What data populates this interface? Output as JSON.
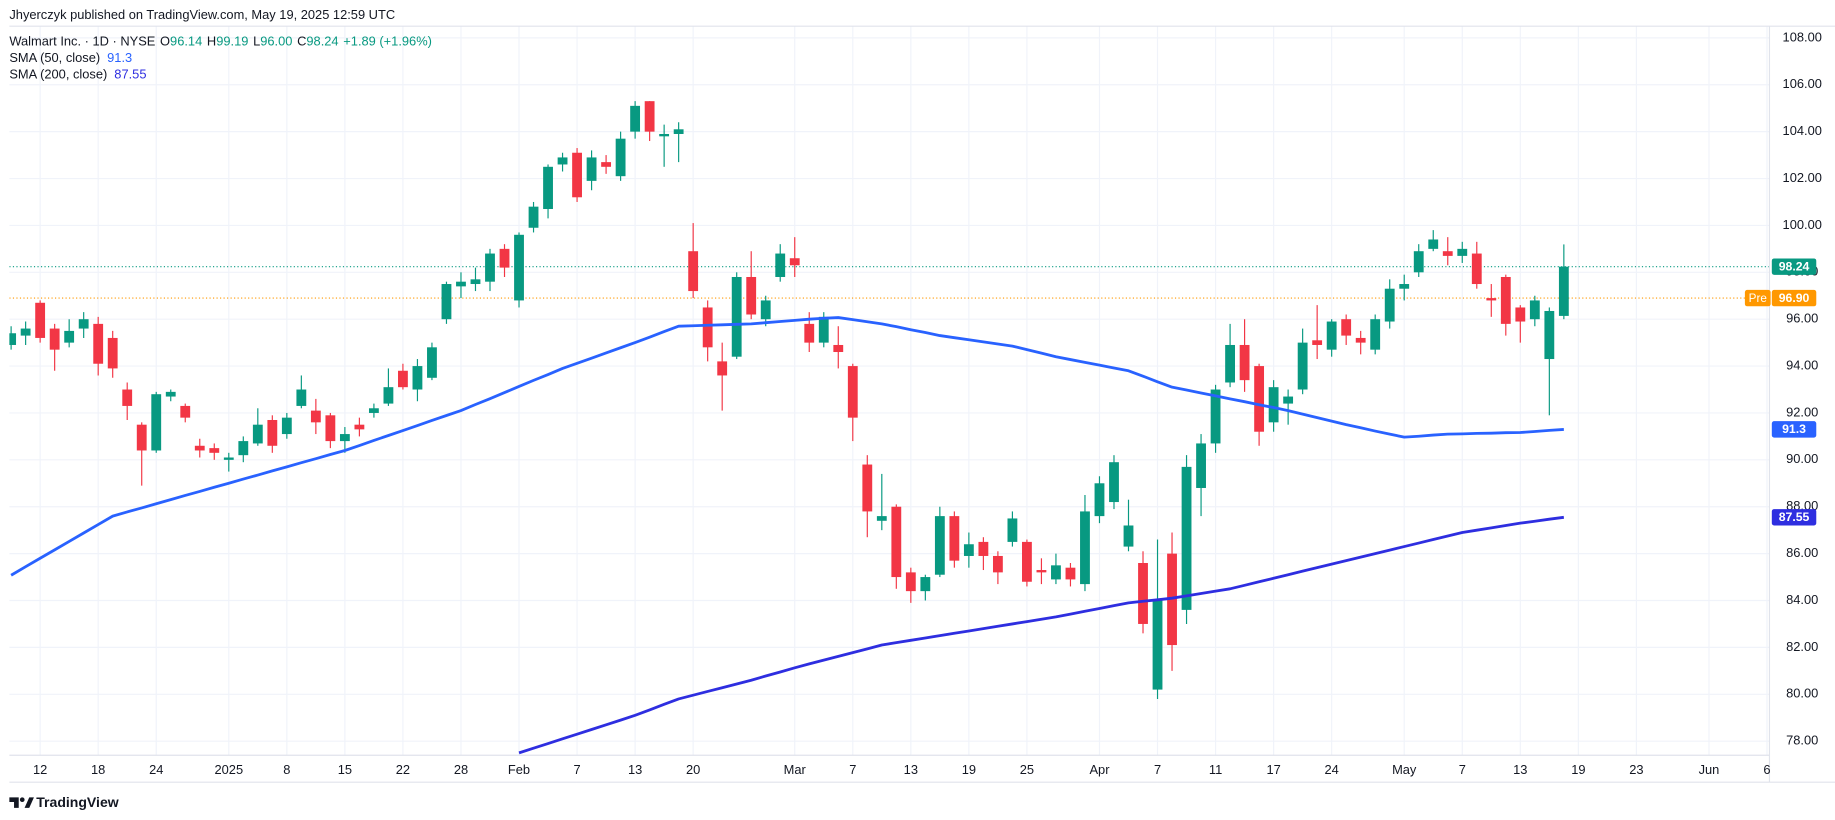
{
  "header": {
    "published": "Jhyerczyk published on TradingView.com, May 19, 2025 12:59 UTC",
    "symbol": "Walmart Inc. · 1D · NYSE",
    "ohlc": [
      {
        "key": "O",
        "text": "96.14"
      },
      {
        "key": "H",
        "text": "99.19"
      },
      {
        "key": "L",
        "text": "96.00"
      },
      {
        "key": "C",
        "text": "98.24"
      }
    ],
    "change": "+1.89 (+1.96%)"
  },
  "chart_data": {
    "type": "candlestick",
    "categories": [
      null,
      null,
      "12",
      null,
      null,
      null,
      "18",
      null,
      null,
      null,
      "24",
      null,
      null,
      null,
      null,
      "2025",
      null,
      null,
      null,
      "8",
      null,
      null,
      null,
      "15",
      null,
      null,
      null,
      "22",
      null,
      null,
      null,
      "28",
      null,
      null,
      null,
      "Feb",
      null,
      null,
      null,
      "7",
      null,
      null,
      null,
      "13",
      null,
      null,
      null,
      "20",
      null,
      null,
      null,
      null,
      null,
      null,
      "Mar",
      null,
      null,
      null,
      "7",
      null,
      null,
      null,
      "13",
      null,
      null,
      null,
      "19",
      null,
      null,
      null,
      "25",
      null,
      null,
      null,
      null,
      "Apr",
      null,
      null,
      null,
      "7",
      null,
      null,
      null,
      "11",
      null,
      null,
      null,
      "17",
      null,
      null,
      null,
      "24",
      null,
      null,
      null,
      null,
      "May",
      null,
      null,
      null,
      "7",
      null,
      null,
      null,
      "13",
      null,
      null,
      null,
      "19",
      null,
      null,
      null,
      "23",
      null,
      null,
      null,
      null,
      "Jun",
      null,
      null,
      null,
      "6"
    ],
    "open": [
      94.9,
      95.3,
      96.7,
      95.6,
      95.0,
      95.6,
      95.8,
      95.2,
      93.0,
      91.5,
      90.4,
      92.7,
      92.3,
      90.6,
      90.5,
      90.0,
      90.2,
      90.7,
      91.7,
      91.1,
      92.3,
      92.1,
      91.9,
      90.8,
      91.5,
      92.0,
      92.4,
      93.8,
      93.0,
      93.5,
      96.0,
      97.4,
      97.5,
      97.6,
      99.0,
      96.8,
      99.9,
      100.7,
      102.6,
      103.1,
      101.9,
      102.7,
      102.1,
      104.0,
      105.3,
      103.8,
      103.9,
      98.9,
      96.5,
      94.2,
      94.4,
      97.8,
      96.0,
      97.8,
      98.6,
      95.8,
      95.0,
      94.9,
      94.0,
      89.8,
      87.4,
      88.0,
      85.2,
      84.4,
      85.1,
      87.6,
      85.9,
      86.5,
      85.9,
      86.5,
      86.5,
      85.3,
      84.9,
      85.4,
      84.7,
      87.6,
      88.2,
      86.3,
      85.6,
      80.2,
      86.0,
      83.6,
      88.8,
      90.7,
      93.3,
      94.9,
      94.0,
      91.6,
      92.4,
      93.0,
      95.1,
      94.7,
      96.0,
      95.2,
      94.7,
      95.9,
      97.3,
      98.0,
      99.0,
      98.9,
      98.7,
      98.8,
      96.9,
      97.8,
      96.5,
      96.0,
      94.3,
      96.14,
      null,
      null,
      null,
      null,
      null,
      null,
      null,
      null,
      null,
      null,
      null,
      null,
      null,
      null
    ],
    "high": [
      95.7,
      95.9,
      96.8,
      95.8,
      96.0,
      96.3,
      96.1,
      95.5,
      93.3,
      91.6,
      92.9,
      93.0,
      92.4,
      90.9,
      90.7,
      90.3,
      91.0,
      92.2,
      91.9,
      92.0,
      93.6,
      92.6,
      92.0,
      91.4,
      91.8,
      92.4,
      93.9,
      94.1,
      94.3,
      95.0,
      97.6,
      98.0,
      98.2,
      99.0,
      99.2,
      99.7,
      101.0,
      102.6,
      103.1,
      103.3,
      103.2,
      103.0,
      104.0,
      105.3,
      105.3,
      104.3,
      104.4,
      100.1,
      96.8,
      95.0,
      98.0,
      98.9,
      97.0,
      99.2,
      99.5,
      96.3,
      96.3,
      95.7,
      94.1,
      90.2,
      89.4,
      88.1,
      85.4,
      85.1,
      88.0,
      87.8,
      86.9,
      86.7,
      86.1,
      87.8,
      86.6,
      85.8,
      86.0,
      85.6,
      88.5,
      89.3,
      90.2,
      88.3,
      86.1,
      86.6,
      86.9,
      90.2,
      91.1,
      93.2,
      95.8,
      96.0,
      94.1,
      93.4,
      93.0,
      95.6,
      96.6,
      96.0,
      96.2,
      95.5,
      96.2,
      97.7,
      97.9,
      99.2,
      99.8,
      99.5,
      99.3,
      99.3,
      97.5,
      97.9,
      96.6,
      97.0,
      96.5,
      99.19,
      null,
      null,
      null,
      null,
      null,
      null,
      null,
      null,
      null,
      null,
      null,
      null,
      null,
      null
    ],
    "low": [
      94.7,
      94.9,
      95.0,
      93.8,
      94.8,
      95.2,
      93.6,
      93.5,
      91.7,
      88.9,
      90.3,
      92.5,
      91.6,
      90.1,
      90.0,
      89.5,
      89.9,
      90.6,
      90.3,
      90.9,
      92.2,
      91.1,
      90.5,
      90.3,
      91.0,
      91.8,
      92.3,
      93.0,
      92.5,
      93.4,
      95.8,
      96.9,
      97.2,
      97.2,
      97.8,
      96.5,
      99.7,
      100.3,
      102.3,
      101.0,
      101.5,
      102.2,
      101.9,
      103.7,
      103.6,
      102.5,
      102.7,
      96.9,
      94.2,
      92.1,
      94.3,
      96.0,
      95.7,
      97.6,
      97.8,
      94.6,
      94.8,
      93.9,
      90.8,
      86.7,
      87.0,
      84.5,
      83.9,
      84.0,
      85.0,
      85.4,
      85.4,
      85.3,
      84.7,
      86.3,
      84.6,
      84.7,
      84.7,
      84.6,
      84.4,
      87.3,
      87.9,
      86.1,
      82.6,
      79.8,
      81.0,
      83.0,
      87.6,
      90.3,
      93.1,
      92.9,
      90.6,
      91.2,
      91.5,
      92.8,
      94.3,
      94.4,
      94.9,
      94.5,
      94.5,
      95.6,
      96.8,
      97.8,
      98.9,
      98.3,
      98.4,
      97.3,
      96.1,
      95.3,
      95.0,
      95.7,
      91.9,
      96.0,
      null,
      null,
      null,
      null,
      null,
      null,
      null,
      null,
      null,
      null,
      null,
      null,
      null,
      null
    ],
    "close": [
      95.4,
      95.6,
      95.2,
      94.7,
      95.5,
      96.0,
      94.1,
      93.9,
      92.3,
      90.4,
      92.8,
      92.9,
      91.8,
      90.4,
      90.3,
      90.1,
      90.8,
      91.5,
      90.6,
      91.8,
      93.0,
      91.6,
      90.8,
      91.1,
      91.3,
      92.2,
      93.1,
      93.1,
      94.0,
      94.8,
      97.5,
      97.6,
      97.7,
      98.8,
      98.2,
      99.6,
      100.8,
      102.5,
      102.9,
      101.2,
      102.9,
      102.5,
      103.7,
      105.1,
      104.0,
      103.9,
      104.1,
      97.2,
      94.8,
      93.6,
      97.8,
      96.2,
      96.8,
      98.8,
      98.3,
      95.0,
      96.1,
      94.6,
      91.8,
      87.8,
      87.6,
      85.0,
      84.4,
      85.0,
      87.6,
      85.7,
      86.4,
      85.9,
      85.2,
      87.5,
      84.8,
      85.2,
      85.5,
      84.9,
      87.8,
      89.0,
      89.9,
      87.2,
      83.0,
      84.0,
      82.1,
      89.7,
      90.7,
      93.0,
      94.9,
      93.4,
      91.2,
      93.1,
      92.7,
      95.0,
      94.9,
      95.9,
      95.3,
      95.0,
      96.0,
      97.3,
      97.5,
      98.9,
      99.4,
      98.7,
      99.0,
      97.5,
      96.8,
      95.8,
      95.9,
      96.8,
      96.35,
      98.24,
      null,
      null,
      null,
      null,
      null,
      null,
      null,
      null,
      null,
      null,
      null,
      null,
      null,
      null
    ],
    "up_color": "#089981",
    "down_color": "#f23645",
    "series": [
      {
        "name": "SMA (50, close)",
        "color": "#2962ff",
        "values": [
          85.08,
          85.44,
          85.8,
          86.16,
          86.52,
          86.88,
          87.24,
          87.6,
          87.78,
          87.95,
          88.13,
          88.3,
          88.48,
          88.65,
          88.83,
          89.0,
          89.18,
          89.35,
          89.53,
          89.7,
          89.88,
          90.05,
          90.23,
          90.4,
          90.61,
          90.83,
          91.04,
          91.25,
          91.46,
          91.68,
          91.89,
          92.1,
          92.36,
          92.61,
          92.87,
          93.13,
          93.39,
          93.64,
          93.9,
          94.12,
          94.34,
          94.56,
          94.78,
          95.0,
          95.23,
          95.47,
          95.7,
          95.72,
          95.74,
          95.76,
          95.78,
          95.8,
          95.85,
          95.9,
          95.95,
          96.0,
          96.04,
          96.07,
          95.98,
          95.89,
          95.8,
          95.68,
          95.55,
          95.43,
          95.3,
          95.21,
          95.12,
          95.03,
          94.94,
          94.85,
          94.7,
          94.55,
          94.4,
          94.28,
          94.16,
          94.04,
          93.92,
          93.8,
          93.57,
          93.33,
          93.1,
          92.98,
          92.85,
          92.73,
          92.6,
          92.48,
          92.35,
          92.23,
          92.1,
          91.95,
          91.8,
          91.65,
          91.5,
          91.37,
          91.23,
          91.1,
          90.97,
          91.01,
          91.06,
          91.1,
          91.11,
          91.13,
          91.14,
          91.16,
          91.17,
          91.21,
          91.26,
          91.3,
          null,
          null,
          null,
          null,
          null,
          null,
          null,
          null,
          null,
          null,
          null,
          null,
          null,
          null
        ]
      },
      {
        "name": "SMA (200, close)",
        "color": "#2e2ee0",
        "values": [
          null,
          null,
          null,
          null,
          null,
          null,
          null,
          null,
          null,
          null,
          null,
          null,
          null,
          null,
          null,
          null,
          null,
          null,
          null,
          null,
          null,
          null,
          null,
          null,
          null,
          null,
          null,
          null,
          null,
          null,
          null,
          null,
          null,
          null,
          null,
          77.5,
          77.7,
          77.9,
          78.1,
          78.3,
          78.5,
          78.7,
          78.9,
          79.1,
          79.33,
          79.57,
          79.8,
          79.96,
          80.12,
          80.28,
          80.44,
          80.6,
          80.78,
          80.95,
          81.13,
          81.3,
          81.46,
          81.62,
          81.78,
          81.94,
          82.1,
          82.2,
          82.3,
          82.4,
          82.5,
          82.6,
          82.7,
          82.8,
          82.9,
          83.0,
          83.1,
          83.2,
          83.3,
          83.42,
          83.54,
          83.66,
          83.78,
          83.9,
          83.97,
          84.03,
          84.1,
          84.2,
          84.3,
          84.4,
          84.5,
          84.65,
          84.8,
          84.95,
          85.1,
          85.25,
          85.4,
          85.55,
          85.7,
          85.85,
          86.0,
          86.15,
          86.3,
          86.45,
          86.6,
          86.75,
          86.9,
          87.0,
          87.1,
          87.2,
          87.3,
          87.38,
          87.47,
          87.55,
          null,
          null,
          null,
          null,
          null,
          null,
          null,
          null,
          null,
          null,
          null,
          null,
          null,
          null
        ]
      }
    ],
    "premarket": {
      "name": "Pre",
      "value": 96.9,
      "label": "96.90",
      "color": "#ff9800"
    },
    "ylim": [
      77.4,
      108.5
    ],
    "yticks": [
      {
        "value": 78,
        "label": "78.00"
      },
      {
        "value": 80,
        "label": "80.00"
      },
      {
        "value": 82,
        "label": "82.00"
      },
      {
        "value": 84,
        "label": "84.00"
      },
      {
        "value": 86,
        "label": "86.00"
      },
      {
        "value": 88,
        "label": "88.00"
      },
      {
        "value": 90,
        "label": "90.00"
      },
      {
        "value": 92,
        "label": "92.00"
      },
      {
        "value": 94,
        "label": "94.00"
      },
      {
        "value": 96,
        "label": "96.00"
      },
      {
        "value": 98,
        "label": "98.00"
      },
      {
        "value": 100,
        "label": "100.00"
      },
      {
        "value": 102,
        "label": "102.00"
      },
      {
        "value": 104,
        "label": "104.00"
      },
      {
        "value": 106,
        "label": "106.00"
      },
      {
        "value": 108,
        "label": "108.00"
      }
    ],
    "grid": true
  },
  "footer": {
    "brand": "TradingView"
  }
}
